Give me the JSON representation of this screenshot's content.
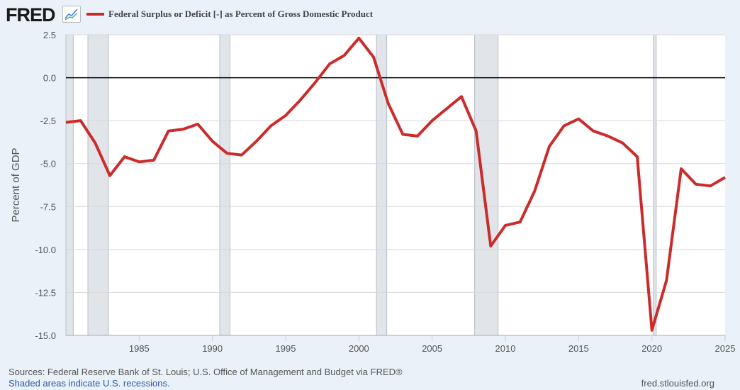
{
  "header": {
    "logo": "FRED",
    "logo_icon": "chart-line-icon"
  },
  "footer": {
    "sources": "Sources: Federal Reserve Bank of St. Louis; U.S. Office of Management and Budget via FRED®",
    "recession_note": "Shaded areas indicate U.S. recessions.",
    "site": "fred.stlouisfed.org"
  },
  "chart_data": {
    "type": "line",
    "title": "",
    "xlabel": "",
    "ylabel": "Percent of GDP",
    "xlim": [
      1980,
      2025
    ],
    "ylim": [
      -15,
      2.5
    ],
    "grid": true,
    "legend_placement": "top-left",
    "line_color": "#cc2b2b",
    "x_ticks": [
      "1985",
      "1990",
      "1995",
      "2000",
      "2005",
      "2010",
      "2015",
      "2020",
      "2025"
    ],
    "y_ticks": [
      "2.5",
      "0.0",
      "-2.5",
      "-5.0",
      "-7.5",
      "-10.0",
      "-12.5",
      "-15.0"
    ],
    "recessions": [
      [
        1980.0,
        1980.5
      ],
      [
        1981.5,
        1982.9
      ],
      [
        1990.5,
        1991.2
      ],
      [
        2001.2,
        2001.9
      ],
      [
        2007.9,
        2009.5
      ],
      [
        2020.1,
        2020.3
      ]
    ],
    "series": [
      {
        "name": "Federal Surplus or Deficit [-] as Percent of Gross Domestic Product",
        "x": [
          1980,
          1981,
          1982,
          1983,
          1984,
          1985,
          1986,
          1987,
          1988,
          1989,
          1990,
          1991,
          1992,
          1993,
          1994,
          1995,
          1996,
          1997,
          1998,
          1999,
          2000,
          2001,
          2002,
          2003,
          2004,
          2005,
          2006,
          2007,
          2008,
          2009,
          2010,
          2011,
          2012,
          2013,
          2014,
          2015,
          2016,
          2017,
          2018,
          2019,
          2020,
          2021,
          2022,
          2023,
          2024,
          2025
        ],
        "values": [
          -2.6,
          -2.5,
          -3.8,
          -5.7,
          -4.6,
          -4.9,
          -4.8,
          -3.1,
          -3.0,
          -2.7,
          -3.7,
          -4.4,
          -4.5,
          -3.7,
          -2.8,
          -2.2,
          -1.3,
          -0.3,
          0.8,
          1.3,
          2.3,
          1.2,
          -1.5,
          -3.3,
          -3.4,
          -2.5,
          -1.8,
          -1.1,
          -3.1,
          -9.8,
          -8.6,
          -8.4,
          -6.6,
          -4.0,
          -2.8,
          -2.4,
          -3.1,
          -3.4,
          -3.8,
          -4.6,
          -14.7,
          -11.8,
          -5.3,
          -6.2,
          -6.3,
          -5.8
        ]
      }
    ]
  }
}
